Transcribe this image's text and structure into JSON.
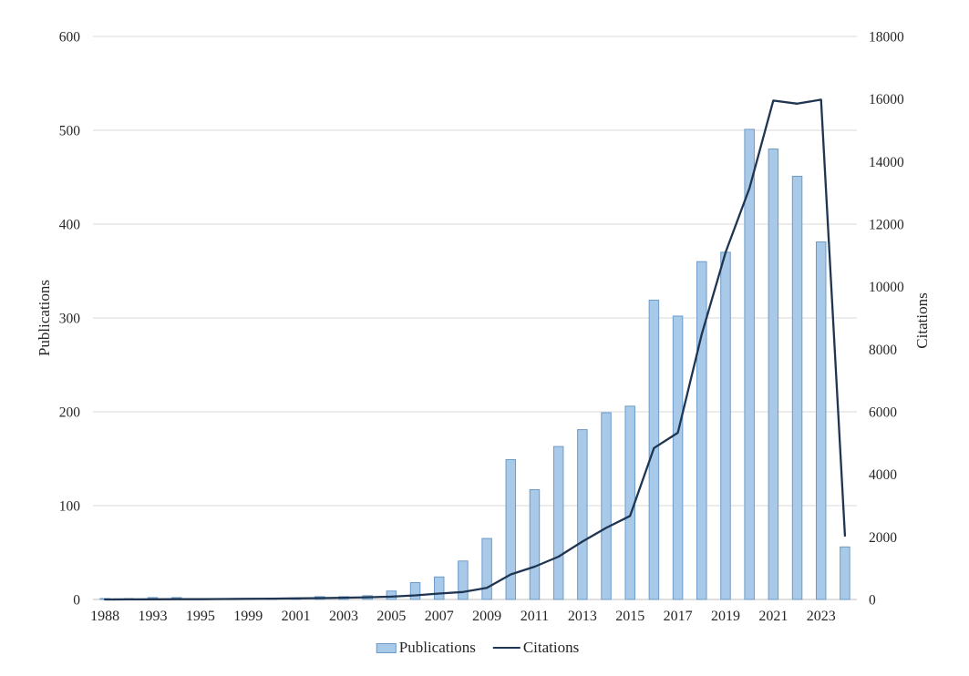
{
  "chart_data": {
    "type": "bar+line combo",
    "title": "",
    "x_tick_labels": [
      "1988",
      "",
      "1993",
      "",
      "1995",
      "",
      "1999",
      "",
      "2001",
      "",
      "2003",
      "",
      "2005",
      "",
      "2007",
      "",
      "2009",
      "",
      "2011",
      "",
      "2013",
      "",
      "2015",
      "",
      "2017",
      "",
      "2019",
      "",
      "2021",
      "",
      "2023",
      ""
    ],
    "series": [
      {
        "name": "Publications",
        "type": "bar",
        "axis": "left",
        "values": [
          1,
          1,
          2,
          2,
          1,
          1,
          1,
          1,
          1,
          3,
          3,
          4,
          9,
          18,
          24,
          41,
          65,
          149,
          117,
          163,
          181,
          199,
          206,
          319,
          302,
          360,
          370,
          501,
          480,
          451,
          381,
          56
        ]
      },
      {
        "name": "Citations",
        "type": "line",
        "axis": "right",
        "values": [
          0,
          2,
          5,
          8,
          10,
          15,
          20,
          25,
          35,
          45,
          55,
          70,
          90,
          130,
          190,
          240,
          370,
          800,
          1050,
          1370,
          1850,
          2290,
          2670,
          4840,
          5330,
          8480,
          11100,
          13150,
          15950,
          15850,
          15980,
          2040
        ]
      }
    ],
    "left_axis": {
      "label": "Publications",
      "min": 0,
      "max": 600,
      "ticks": [
        0,
        100,
        200,
        300,
        400,
        500,
        600
      ]
    },
    "right_axis": {
      "label": "Citations",
      "min": 0,
      "max": 18000,
      "ticks": [
        0,
        2000,
        4000,
        6000,
        8000,
        10000,
        12000,
        14000,
        16000,
        18000
      ]
    },
    "legend": {
      "position": "bottom-center",
      "entries": [
        "Publications",
        "Citations"
      ]
    },
    "grid": "horizontal gridlines at left-axis ticks",
    "colors": {
      "bar_fill": "#a8cae8",
      "bar_border": "#6c9bc9",
      "line": "#1f3552",
      "gridline": "#d9d9d9",
      "axis_line": "#bfbfbf",
      "text": "#262626",
      "background": "#ffffff"
    }
  },
  "legend": {
    "publications_label": "Publications",
    "citations_label": "Citations"
  },
  "axes": {
    "left_title": "Publications",
    "right_title": "Citations"
  }
}
